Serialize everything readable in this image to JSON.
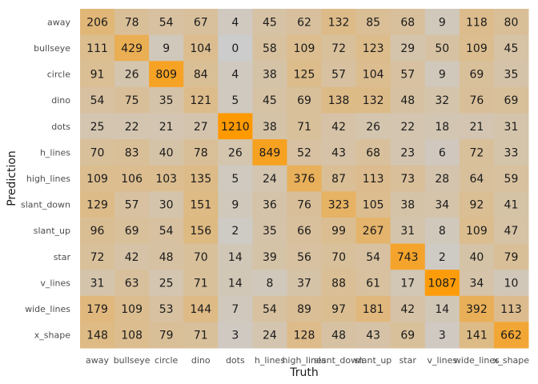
{
  "chart_data": {
    "type": "heatmap",
    "title": "",
    "xlabel": "Truth",
    "ylabel": "Prediction",
    "x_categories": [
      "away",
      "bullseye",
      "circle",
      "dino",
      "dots",
      "h_lines",
      "high_lines",
      "slant_down",
      "slant_up",
      "star",
      "v_lines",
      "wide_lines",
      "x_shape"
    ],
    "y_categories": [
      "away",
      "bullseye",
      "circle",
      "dino",
      "dots",
      "h_lines",
      "high_lines",
      "slant_down",
      "slant_up",
      "star",
      "v_lines",
      "wide_lines",
      "x_shape"
    ],
    "values": [
      [
        206,
        78,
        54,
        67,
        4,
        45,
        62,
        132,
        85,
        68,
        9,
        118,
        80
      ],
      [
        111,
        429,
        9,
        104,
        0,
        58,
        109,
        72,
        123,
        29,
        50,
        109,
        45
      ],
      [
        91,
        26,
        809,
        84,
        4,
        38,
        125,
        57,
        104,
        57,
        9,
        69,
        35
      ],
      [
        54,
        75,
        35,
        121,
        5,
        45,
        69,
        138,
        132,
        48,
        32,
        76,
        69
      ],
      [
        25,
        22,
        21,
        27,
        1210,
        38,
        71,
        42,
        26,
        22,
        18,
        21,
        31
      ],
      [
        70,
        83,
        40,
        78,
        26,
        849,
        52,
        43,
        68,
        23,
        6,
        72,
        33
      ],
      [
        109,
        106,
        103,
        135,
        5,
        24,
        376,
        87,
        113,
        73,
        28,
        64,
        59
      ],
      [
        129,
        57,
        30,
        151,
        9,
        36,
        76,
        323,
        105,
        38,
        34,
        92,
        41
      ],
      [
        96,
        69,
        54,
        156,
        2,
        35,
        66,
        99,
        267,
        31,
        8,
        109,
        47
      ],
      [
        72,
        42,
        48,
        70,
        14,
        39,
        56,
        70,
        54,
        743,
        2,
        40,
        79
      ],
      [
        31,
        63,
        25,
        71,
        14,
        8,
        37,
        88,
        61,
        17,
        1087,
        34,
        10
      ],
      [
        179,
        109,
        53,
        144,
        7,
        54,
        89,
        97,
        181,
        42,
        14,
        392,
        113
      ],
      [
        148,
        108,
        79,
        71,
        3,
        24,
        128,
        48,
        43,
        69,
        3,
        141,
        662
      ]
    ],
    "color_low": "#cccccc",
    "color_high": "#ff9900",
    "panel_background": "#ebebeb",
    "grid": false,
    "legend": "none"
  }
}
